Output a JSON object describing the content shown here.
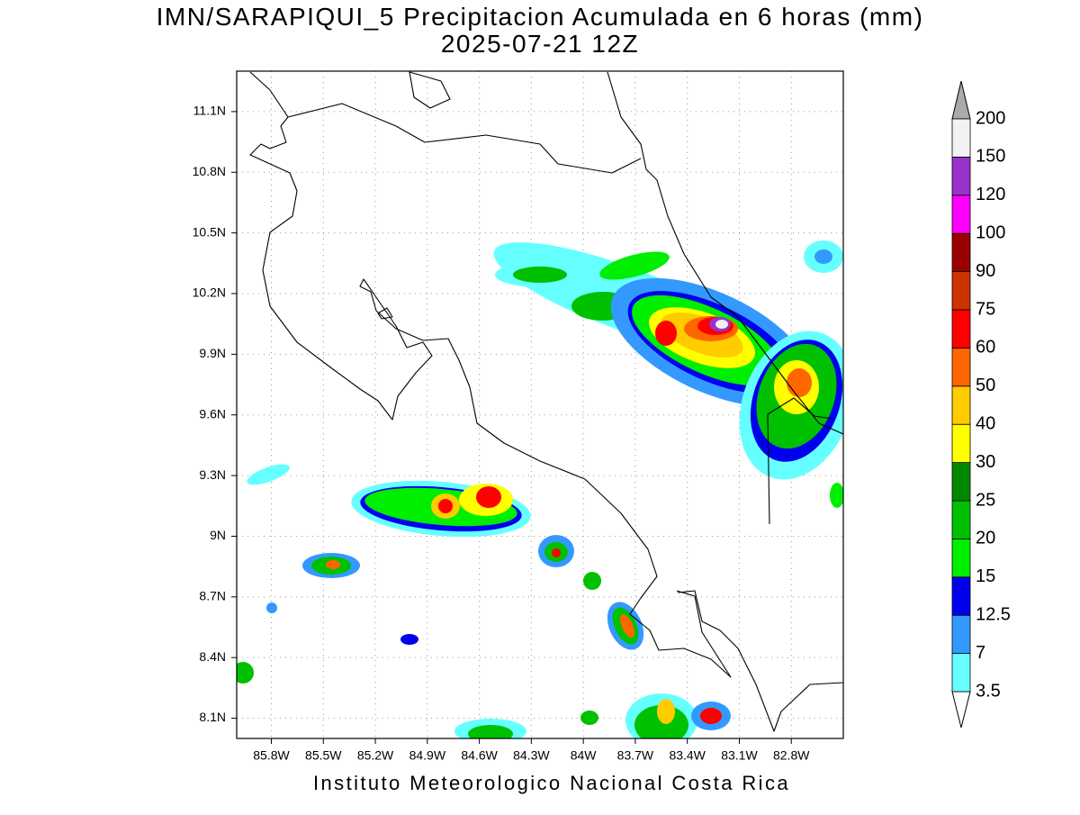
{
  "title": "IMN/SARAPIQUI_5 Precipitacion Acumulada en 6 horas (mm)",
  "subtitle": "2025-07-21 12Z",
  "footer": "Instituto Meteorologico Nacional Costa Rica",
  "map": {
    "xlim": [
      -86.0,
      -82.5
    ],
    "ylim": [
      8.0,
      11.3
    ],
    "grid": true,
    "xticks": [
      {
        "value": -85.8,
        "label": "85.8W"
      },
      {
        "value": -85.5,
        "label": "85.5W"
      },
      {
        "value": -85.2,
        "label": "85.2W"
      },
      {
        "value": -84.9,
        "label": "84.9W"
      },
      {
        "value": -84.6,
        "label": "84.6W"
      },
      {
        "value": -84.3,
        "label": "84.3W"
      },
      {
        "value": -84.0,
        "label": "84W"
      },
      {
        "value": -83.7,
        "label": "83.7W"
      },
      {
        "value": -83.4,
        "label": "83.4W"
      },
      {
        "value": -83.1,
        "label": "83.1W"
      },
      {
        "value": -82.8,
        "label": "82.8W"
      }
    ],
    "yticks": [
      {
        "value": 8.1,
        "label": "8.1N"
      },
      {
        "value": 8.4,
        "label": "8.4N"
      },
      {
        "value": 8.7,
        "label": "8.7N"
      },
      {
        "value": 9.0,
        "label": "9N"
      },
      {
        "value": 9.3,
        "label": "9.3N"
      },
      {
        "value": 9.6,
        "label": "9.6N"
      },
      {
        "value": 9.9,
        "label": "9.9N"
      },
      {
        "value": 10.2,
        "label": "10.2N"
      },
      {
        "value": 10.5,
        "label": "10.5N"
      },
      {
        "value": 10.8,
        "label": "10.8N"
      },
      {
        "value": 11.1,
        "label": "11.1N"
      }
    ]
  },
  "colorbar": {
    "levels": [
      3.5,
      7,
      12.5,
      15,
      20,
      25,
      30,
      40,
      50,
      60,
      75,
      90,
      100,
      120,
      150,
      200
    ],
    "colors": [
      "#66ffff",
      "#3399ff",
      "#0000ee",
      "#00ee00",
      "#00c000",
      "#008800",
      "#ffff00",
      "#ffcc00",
      "#ff6600",
      "#ff0000",
      "#cc3300",
      "#990000",
      "#ff00ff",
      "#9933cc",
      "#f2f2f2"
    ],
    "under_color": "#ffffff",
    "over_color": "#aaaaaa"
  }
}
